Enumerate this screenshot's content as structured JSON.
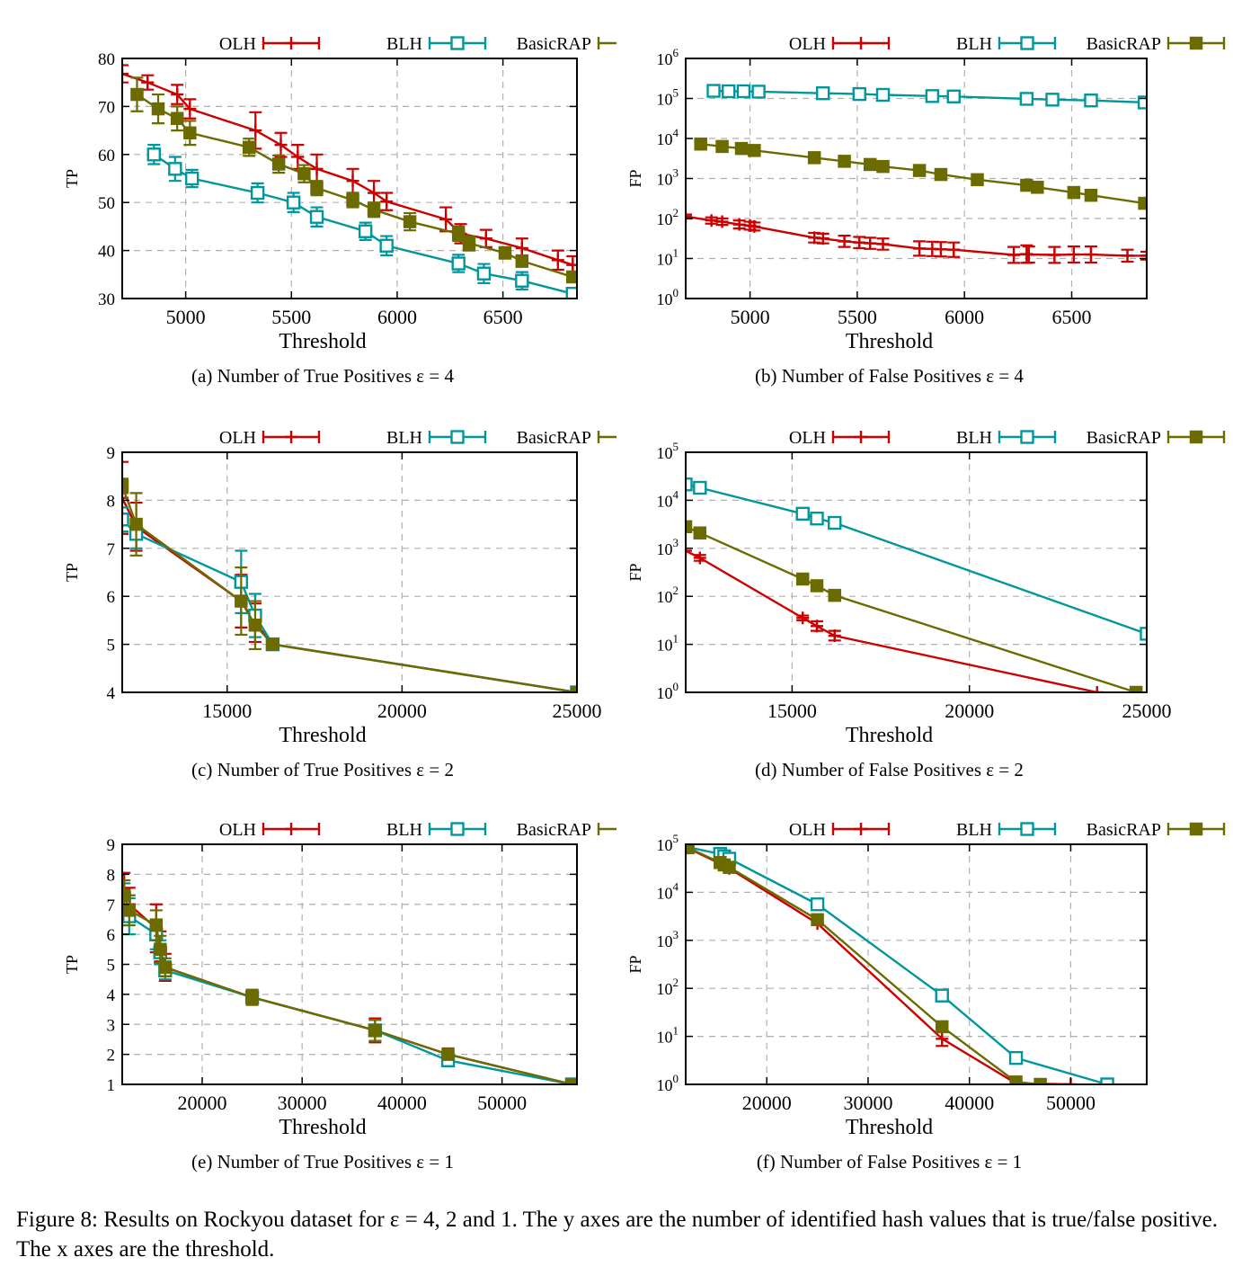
{
  "colors": {
    "OLH": "#cc0000",
    "BLH": "#00979c",
    "BasicRAP": "#6b6b00"
  },
  "figure_caption": "Figure 8:   Results on Rockyou dataset for ε = 4, 2 and 1. The y axes are the number of identified hash values that is true/false positive. The x axes are the threshold.",
  "chart_data": [
    {
      "type": "line",
      "caption": "(a)  Number of True Positives ε = 4",
      "xlabel": "Threshold",
      "ylabel": "TP",
      "xlim": [
        4700,
        6850
      ],
      "ylim": [
        30,
        80
      ],
      "yscale": "linear",
      "xticks": [
        5000,
        5500,
        6000,
        6500
      ],
      "yticks": [
        30,
        40,
        50,
        60,
        70,
        80
      ],
      "ytick_labels": [
        "30",
        "40",
        "50",
        "60",
        "70",
        "80"
      ],
      "grid": true,
      "legend": "top",
      "series": [
        {
          "name": "OLH",
          "marker": "plus",
          "x": [
            4700,
            4820,
            4960,
            5020,
            5330,
            5450,
            5530,
            5620,
            5790,
            5890,
            5950,
            6230,
            6300,
            6420,
            6590,
            6760,
            6830
          ],
          "y": [
            76.8,
            75,
            72.5,
            69.5,
            65,
            62,
            59.5,
            57,
            54.5,
            52,
            50.2,
            46.5,
            43.5,
            42.5,
            40.5,
            38,
            37
          ],
          "err": [
            1.8,
            1.5,
            2,
            2,
            3.8,
            2.5,
            2.5,
            3,
            2.5,
            2.5,
            1.8,
            2.5,
            2,
            1.8,
            2,
            2,
            1.8
          ]
        },
        {
          "name": "BLH",
          "marker": "open-square",
          "x": [
            4850,
            4950,
            5030,
            5340,
            5510,
            5620,
            5850,
            5950,
            6290,
            6410,
            6590,
            6830
          ],
          "y": [
            60,
            57,
            55,
            52,
            50,
            47,
            44,
            41,
            37.3,
            35.2,
            33.7,
            31
          ],
          "err": [
            2,
            2.5,
            1.8,
            2,
            2,
            2,
            1.8,
            2,
            1.8,
            2,
            1.8,
            1
          ]
        },
        {
          "name": "BasicRAP",
          "marker": "filled-square",
          "x": [
            4770,
            4870,
            4960,
            5020,
            5300,
            5440,
            5560,
            5620,
            5790,
            5890,
            6060,
            6290,
            6340,
            6510,
            6590,
            6830
          ],
          "y": [
            72.5,
            69.5,
            67.5,
            64.5,
            61.5,
            58,
            56,
            53,
            50.5,
            48.5,
            46,
            43.5,
            41.5,
            39.5,
            37.8,
            34.5
          ],
          "err": [
            3.5,
            3,
            2.5,
            2.5,
            1.8,
            1.8,
            1.8,
            1.5,
            1.5,
            1.5,
            1.8,
            1.5,
            1.5,
            1.2,
            1.2,
            1
          ]
        }
      ]
    },
    {
      "type": "line",
      "caption": "(b)  Number of False Positives ε = 4",
      "xlabel": "Threshold",
      "ylabel": "FP",
      "xlim": [
        4700,
        6850
      ],
      "ylim": [
        0,
        6
      ],
      "yscale": "log",
      "xticks": [
        5000,
        5500,
        6000,
        6500
      ],
      "yticks": [
        0,
        1,
        2,
        3,
        4,
        5,
        6
      ],
      "ytick_labels": [
        "10^0",
        "10^1",
        "10^2",
        "10^3",
        "10^4",
        "10^5",
        "10^6"
      ],
      "grid": true,
      "legend": "top",
      "series": [
        {
          "name": "OLH",
          "marker": "plus",
          "x": [
            4700,
            4820,
            4870,
            4950,
            5000,
            5020,
            5300,
            5340,
            5440,
            5510,
            5560,
            5620,
            5790,
            5850,
            5890,
            5950,
            6230,
            6290,
            6300,
            6420,
            6510,
            6590,
            6760,
            6850
          ],
          "y": [
            2.05,
            1.95,
            1.92,
            1.85,
            1.82,
            1.8,
            1.52,
            1.5,
            1.43,
            1.4,
            1.38,
            1.36,
            1.25,
            1.24,
            1.23,
            1.22,
            1.09,
            1.11,
            1.1,
            1.09,
            1.1,
            1.1,
            1.07,
            1.07
          ],
          "err": [
            0.05,
            0.08,
            0.08,
            0.1,
            0.1,
            0.1,
            0.12,
            0.12,
            0.14,
            0.14,
            0.14,
            0.14,
            0.18,
            0.18,
            0.18,
            0.18,
            0.2,
            0.22,
            0.2,
            0.2,
            0.2,
            0.2,
            0.15,
            0.1
          ]
        },
        {
          "name": "BLH",
          "marker": "open-square",
          "x": [
            4830,
            4900,
            4970,
            5040,
            5340,
            5510,
            5620,
            5850,
            5950,
            6290,
            6410,
            6590,
            6840
          ],
          "y": [
            5.19,
            5.18,
            5.18,
            5.17,
            5.13,
            5.11,
            5.09,
            5.06,
            5.05,
            4.99,
            4.97,
            4.95,
            4.9
          ],
          "err": [
            0,
            0,
            0,
            0,
            0,
            0,
            0,
            0,
            0,
            0,
            0,
            0,
            0
          ]
        },
        {
          "name": "BasicRAP",
          "marker": "filled-square",
          "x": [
            4770,
            4870,
            4960,
            5020,
            5300,
            5440,
            5560,
            5620,
            5790,
            5890,
            6060,
            6290,
            6340,
            6510,
            6590,
            6840
          ],
          "y": [
            3.86,
            3.8,
            3.75,
            3.7,
            3.52,
            3.43,
            3.35,
            3.3,
            3.2,
            3.1,
            2.97,
            2.83,
            2.78,
            2.65,
            2.58,
            2.38
          ],
          "err": [
            0,
            0,
            0,
            0,
            0,
            0,
            0,
            0,
            0,
            0,
            0,
            0,
            0,
            0,
            0,
            0
          ]
        }
      ]
    },
    {
      "type": "line",
      "caption": "(c)  Number of True Positives ε = 2",
      "xlabel": "Threshold",
      "ylabel": "TP",
      "xlim": [
        12000,
        25000
      ],
      "ylim": [
        4,
        9
      ],
      "yscale": "linear",
      "xticks": [
        15000,
        20000,
        25000
      ],
      "yticks": [
        4,
        5,
        6,
        7,
        8,
        9
      ],
      "ytick_labels": [
        "4",
        "5",
        "6",
        "7",
        "8",
        "9"
      ],
      "grid": true,
      "legend": "top",
      "series": [
        {
          "name": "OLH",
          "marker": "plus",
          "x": [
            12000,
            12400,
            15400,
            15800,
            16300,
            25000
          ],
          "y": [
            8.05,
            7.45,
            5.9,
            5.45,
            5,
            4
          ],
          "err": [
            0.75,
            0.5,
            0.55,
            0.4,
            0.08,
            0
          ]
        },
        {
          "name": "BLH",
          "marker": "open-square",
          "x": [
            12000,
            12400,
            15400,
            15800,
            16300,
            25000
          ],
          "y": [
            7.6,
            7.3,
            6.3,
            5.6,
            5,
            4
          ],
          "err": [
            0.25,
            0.3,
            0.65,
            0.45,
            0.05,
            0
          ]
        },
        {
          "name": "BasicRAP",
          "marker": "filled-square",
          "x": [
            12000,
            12400,
            15400,
            15800,
            16300,
            25000
          ],
          "y": [
            8.3,
            7.5,
            5.9,
            5.4,
            5,
            4
          ],
          "err": [
            0.15,
            0.65,
            0.7,
            0.5,
            0.05,
            0
          ]
        }
      ]
    },
    {
      "type": "line",
      "caption": "(d)  Number of False Positives ε = 2",
      "xlabel": "Threshold",
      "ylabel": "FP",
      "xlim": [
        12000,
        25000
      ],
      "ylim": [
        0,
        5
      ],
      "yscale": "log",
      "xticks": [
        15000,
        20000,
        25000
      ],
      "yticks": [
        0,
        1,
        2,
        3,
        4,
        5
      ],
      "ytick_labels": [
        "10^0",
        "10^1",
        "10^2",
        "10^3",
        "10^4",
        "10^5"
      ],
      "grid": true,
      "legend": "top",
      "series": [
        {
          "name": "OLH",
          "marker": "plus",
          "x": [
            12000,
            12400,
            15300,
            15700,
            16200,
            23600
          ],
          "y": [
            2.95,
            2.8,
            1.55,
            1.38,
            1.18,
            0
          ],
          "err": [
            0,
            0.06,
            0.05,
            0.1,
            0.1,
            0
          ]
        },
        {
          "name": "BLH",
          "marker": "open-square",
          "x": [
            12000,
            12400,
            15300,
            15700,
            16200,
            25000
          ],
          "y": [
            4.33,
            4.26,
            3.72,
            3.62,
            3.53,
            1.22
          ],
          "err": [
            0,
            0,
            0,
            0,
            0,
            0
          ]
        },
        {
          "name": "BasicRAP",
          "marker": "filled-square",
          "x": [
            12000,
            12400,
            15300,
            15700,
            16200,
            24700
          ],
          "y": [
            3.45,
            3.32,
            2.36,
            2.22,
            2.02,
            0
          ],
          "err": [
            0,
            0,
            0,
            0,
            0,
            0
          ]
        }
      ]
    },
    {
      "type": "line",
      "caption": "(e)  Number of True Positives ε = 1",
      "xlabel": "Threshold",
      "ylabel": "TP",
      "xlim": [
        12000,
        57500
      ],
      "ylim": [
        1,
        9
      ],
      "yscale": "linear",
      "xticks": [
        20000,
        30000,
        40000,
        50000
      ],
      "yticks": [
        1,
        2,
        3,
        4,
        5,
        6,
        7,
        8,
        9
      ],
      "ytick_labels": [
        "1",
        "2",
        "3",
        "4",
        "5",
        "6",
        "7",
        "8",
        "9"
      ],
      "grid": true,
      "legend": "top",
      "series": [
        {
          "name": "OLH",
          "marker": "plus",
          "x": [
            12200,
            12700,
            15400,
            15800,
            16300,
            25000,
            37300,
            44600,
            57000
          ],
          "y": [
            7.5,
            7,
            6.2,
            5.6,
            4.9,
            3.9,
            2.8,
            2,
            1
          ],
          "err": [
            0.55,
            0.55,
            0.8,
            0.5,
            0.45,
            0.25,
            0.4,
            0.2,
            0
          ]
        },
        {
          "name": "BLH",
          "marker": "open-square",
          "x": [
            12200,
            12700,
            15400,
            15800,
            16300,
            25000,
            37300,
            44600,
            57000
          ],
          "y": [
            7.2,
            6.6,
            6,
            5.4,
            4.8,
            3.9,
            2.8,
            1.8,
            1
          ],
          "err": [
            0.5,
            0.6,
            0.5,
            0.4,
            0.3,
            0.2,
            0.35,
            0.15,
            0
          ]
        },
        {
          "name": "BasicRAP",
          "marker": "filled-square",
          "x": [
            12200,
            12700,
            15400,
            15800,
            16300,
            25000,
            37300,
            44600,
            57000
          ],
          "y": [
            7.3,
            6.8,
            6.3,
            5.5,
            4.9,
            3.9,
            2.8,
            2,
            1
          ],
          "err": [
            0.5,
            0.5,
            0.5,
            0.45,
            0.3,
            0.25,
            0.35,
            0.15,
            0
          ]
        }
      ]
    },
    {
      "type": "line",
      "caption": "(f)  Number of False Positives ε = 1",
      "xlabel": "Threshold",
      "ylabel": "FP",
      "xlim": [
        12000,
        57500
      ],
      "ylim": [
        0,
        5
      ],
      "yscale": "log",
      "xticks": [
        20000,
        30000,
        40000,
        50000
      ],
      "yticks": [
        0,
        1,
        2,
        3,
        4,
        5
      ],
      "ytick_labels": [
        "10^0",
        "10^1",
        "10^2",
        "10^3",
        "10^4",
        "10^5"
      ],
      "grid": true,
      "legend": "top",
      "series": [
        {
          "name": "OLH",
          "marker": "plus",
          "x": [
            12200,
            15400,
            15800,
            16300,
            25000,
            37300,
            44600,
            50000
          ],
          "y": [
            4.92,
            4.6,
            4.55,
            4.5,
            3.35,
            0.95,
            0.02,
            0
          ],
          "err": [
            0,
            0,
            0,
            0,
            0,
            0.15,
            0,
            0
          ]
        },
        {
          "name": "BLH",
          "marker": "open-square",
          "x": [
            12200,
            15400,
            15800,
            16300,
            25000,
            37300,
            44600,
            53600
          ],
          "y": [
            4.94,
            4.8,
            4.75,
            4.7,
            3.75,
            1.85,
            0.55,
            0
          ],
          "err": [
            0,
            0,
            0,
            0,
            0,
            0,
            0,
            0
          ]
        },
        {
          "name": "BasicRAP",
          "marker": "filled-square",
          "x": [
            12200,
            15400,
            15800,
            16300,
            25000,
            37300,
            44600,
            47000
          ],
          "y": [
            4.93,
            4.62,
            4.57,
            4.52,
            3.43,
            1.2,
            0.05,
            0
          ],
          "err": [
            0,
            0,
            0,
            0,
            0,
            0,
            0,
            0
          ]
        }
      ]
    }
  ]
}
